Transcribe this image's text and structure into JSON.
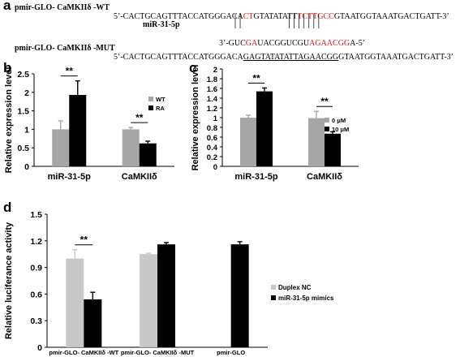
{
  "panels": {
    "a": "a",
    "b": "b",
    "c": "c",
    "d": "d"
  },
  "sequences": {
    "wt_label": "pmir-GLO- CaMKIIδ -WT",
    "wt_seq": [
      "5’-CACTGCAGTTTACCATGGGACA",
      "CT",
      "GTATATATT",
      "TCTTGCC",
      "GTAATGGTAAATGACTGATT-3’"
    ],
    "mir_label": "miR-31-5p",
    "mir_seq": [
      "3’-GUC",
      "GA",
      "UACGGUCGU",
      "AGAACGG",
      "A-5’"
    ],
    "mut_label": "pmir-GLO- CaMKIIδ -MUT",
    "mut_seq": [
      "5’-CACTGCAGTTTACCATGGGACA",
      "GAGTATATATTAGAACGG",
      "GTAATGGTAAATGACTGATT-3’"
    ]
  },
  "chart_data": [
    {
      "type": "bar",
      "panel": "b",
      "categories": [
        "miR-31-5p",
        "CaMKIIδ"
      ],
      "series": [
        {
          "name": "WT",
          "values": [
            1.0,
            1.0
          ],
          "errors": [
            0.23,
            0.05
          ],
          "color": "#a6a6a6"
        },
        {
          "name": "RA",
          "values": [
            1.93,
            0.62
          ],
          "errors": [
            0.38,
            0.06
          ],
          "color": "#000000"
        }
      ],
      "ylabel": "Relative expression level",
      "ylim": [
        0,
        2.5
      ],
      "yticks": [
        "0",
        "0.5",
        "1",
        "1.5",
        "2",
        "2.5"
      ],
      "significance": [
        "**",
        "**"
      ],
      "legend": "right"
    },
    {
      "type": "bar",
      "panel": "c",
      "categories": [
        "miR-31-5p",
        "CaMKIIδ"
      ],
      "series": [
        {
          "name": "0 μM",
          "values": [
            1.0,
            0.99
          ],
          "errors": [
            0.05,
            0.14
          ],
          "color": "#a6a6a6"
        },
        {
          "name": "10 μM",
          "values": [
            1.54,
            0.67
          ],
          "errors": [
            0.07,
            0.04
          ],
          "color": "#000000"
        }
      ],
      "ylabel": "Relative expression level",
      "ylim": [
        0,
        2
      ],
      "yticks": [
        "0",
        "0.2",
        "0.4",
        "0.6",
        "0.8",
        "1",
        "1.2",
        "1.4",
        "1.6",
        "1.8",
        "2"
      ],
      "significance": [
        "**",
        "**"
      ],
      "legend": "right"
    },
    {
      "type": "bar",
      "panel": "d",
      "categories": [
        "pmir-GLO- CaMKIIδ -WT",
        "pmir-GLO- CaMKIIδ -MUT",
        "pmir-GLO"
      ],
      "series": [
        {
          "name": "Duplex NC",
          "values": [
            1.0,
            1.05,
            null
          ],
          "errors": [
            0.1,
            0.01,
            null
          ],
          "color": "#c8c8c8"
        },
        {
          "name": "miR-31-5p mimics",
          "values": [
            0.54,
            1.16,
            1.16
          ],
          "errors": [
            0.08,
            0.02,
            0.03
          ],
          "color": "#000000"
        }
      ],
      "ylabel": "Relative luciferance activity",
      "ylim": [
        0,
        1.5
      ],
      "yticks": [
        "0",
        "0.3",
        "0.6",
        "0.9",
        "1.2",
        "1.5"
      ],
      "significance": [
        "**",
        "",
        ""
      ],
      "legend": "right"
    }
  ]
}
